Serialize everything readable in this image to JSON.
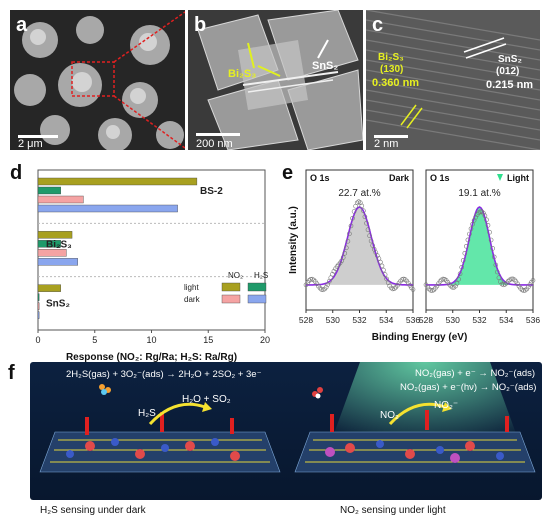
{
  "panels": {
    "a": {
      "label": "a",
      "scale": "2 μm"
    },
    "b": {
      "label": "b",
      "scale": "200 nm",
      "arrow1": "Bi₂S₃",
      "arrow2": "SnS₂"
    },
    "c": {
      "label": "c",
      "scale": "2 nm",
      "left_title": "Bi₂S₃",
      "left_plane": "(130)",
      "left_d": "0.360 nm",
      "right_title": "SnS₂",
      "right_plane": "(012)",
      "right_d": "0.215 nm"
    },
    "d": {
      "label": "d"
    },
    "e": {
      "label": "e"
    },
    "f": {
      "label": "f",
      "left_eq": "2H₂S(gas) + 3O₂⁻(ads) → 2H₂O + 2SO₂ + 3e⁻",
      "left_gas": "H₂S",
      "left_prod": "H₂O + SO₂",
      "right_eq1": "NO₂(gas) + e⁻ → NO₂⁻(ads)",
      "right_eq2": "NO₂(gas) + e⁻(hν) → NO₂⁻(ads)",
      "right_gas": "NO₂",
      "right_prod": "NO₂⁻",
      "caption_left": "H₂S sensing under dark",
      "caption_right": "NO₂ sensing under light"
    }
  },
  "chart_data": [
    {
      "type": "bar",
      "title": "",
      "xlabel": "Response (NO₂: Rg/Ra; H₂S: Ra/Rg)",
      "ylabel": "",
      "xlim": [
        0,
        20
      ],
      "xticks": [
        "0",
        "5",
        "10",
        "15",
        "20"
      ],
      "groups": [
        "BS-2",
        "Bi₂S₃",
        "SnS₂"
      ],
      "group_labels": [
        "BS-2",
        "Bi₂S₃",
        "SnS₂"
      ],
      "legend_header": [
        "NO₂",
        "H₂S"
      ],
      "legend_rows": [
        "light",
        "dark"
      ],
      "series": [
        {
          "name": "NO₂ light",
          "color": "#a8a020",
          "values": [
            14,
            3,
            2
          ]
        },
        {
          "name": "H₂S light",
          "color": "#1f9a6a",
          "values": [
            2,
            2,
            0.1
          ]
        },
        {
          "name": "NO₂ dark",
          "color": "#f5a3a3",
          "values": [
            4,
            2.5,
            0.1
          ]
        },
        {
          "name": "H₂S dark",
          "color": "#8aa6ee",
          "values": [
            12.3,
            3.5,
            0.1
          ]
        }
      ]
    },
    {
      "type": "scatter",
      "title": "",
      "xlabel": "Binding Energy (eV)",
      "ylabel": "Intensity (a.u.)",
      "xlim": [
        528,
        536
      ],
      "xticks": [
        "528",
        "530",
        "532",
        "534",
        "536"
      ],
      "subplots": [
        {
          "label": "O 1s",
          "condition": "Dark",
          "annotation": "22.7 at.%",
          "fill": "#bdbdbd",
          "center": 532,
          "width": 0.9
        },
        {
          "label": "O 1s",
          "condition": "Light",
          "annotation": "19.1 at.%",
          "fill": "#2fdf8e",
          "center": 532,
          "width": 0.75
        }
      ]
    }
  ]
}
